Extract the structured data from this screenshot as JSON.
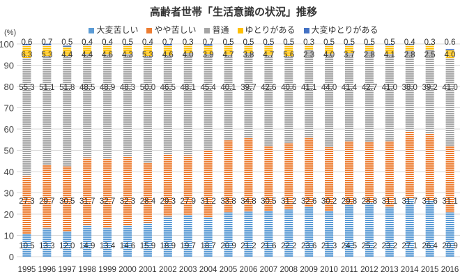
{
  "chart_data": {
    "type": "bar",
    "stacked": true,
    "title": "高齢者世帯「生活意識の状況」推移",
    "ylabel": "(%)",
    "ylim": [
      0,
      100
    ],
    "yticks": [
      0,
      10,
      20,
      30,
      40,
      50,
      60,
      70,
      80,
      90,
      100
    ],
    "grid": true,
    "legend_position": "top",
    "categories": [
      "1995",
      "1996",
      "1997",
      "1998",
      "1999",
      "2000",
      "2001",
      "2002",
      "2003",
      "2004",
      "2005",
      "2006",
      "2007",
      "2008",
      "2009",
      "2010",
      "2011",
      "2012",
      "2013",
      "2014",
      "2015",
      "2016"
    ],
    "series": [
      {
        "name": "大変苦しい",
        "color": "#5b9bd5",
        "values": [
          10.5,
          13.3,
          12.0,
          14.9,
          13.4,
          14.6,
          15.9,
          18.9,
          19.7,
          18.7,
          20.9,
          21.2,
          21.6,
          22.2,
          23.6,
          21.3,
          24.5,
          25.2,
          23.2,
          27.1,
          26.4,
          20.9
        ]
      },
      {
        "name": "やや苦しい",
        "color": "#ed7d31",
        "values": [
          27.3,
          29.7,
          30.5,
          31.7,
          32.7,
          32.3,
          28.4,
          29.3,
          27.9,
          31.2,
          33.8,
          34.8,
          30.5,
          31.2,
          32.6,
          30.2,
          29.8,
          28.8,
          31.1,
          31.7,
          31.6,
          31.1
        ]
      },
      {
        "name": "普通",
        "color": "#a5a5a5",
        "values": [
          55.3,
          51.1,
          51.8,
          48.5,
          48.9,
          48.3,
          50.0,
          46.5,
          48.1,
          45.4,
          40.1,
          39.7,
          42.6,
          40.6,
          41.1,
          44.0,
          41.4,
          42.7,
          41.0,
          38.0,
          39.2,
          41.0
        ]
      },
      {
        "name": "ゆとりがある",
        "color": "#ffc000",
        "values": [
          6.3,
          5.3,
          4.4,
          4.4,
          4.6,
          4.3,
          5.3,
          4.6,
          4.0,
          3.9,
          4.7,
          3.8,
          4.7,
          5.6,
          2.3,
          4.0,
          3.7,
          2.8,
          4.1,
          2.8,
          2.5,
          4.0
        ]
      },
      {
        "name": "大変ゆとりがある",
        "color": "#4472c4",
        "values": [
          0.6,
          0.7,
          0.5,
          0.4,
          0.4,
          0.5,
          0.4,
          0.7,
          0.3,
          0.7,
          0.5,
          0.5,
          0.5,
          0.5,
          0.3,
          0.5,
          0.5,
          0.5,
          0.5,
          0.4,
          0.3,
          0.6
        ]
      }
    ]
  }
}
